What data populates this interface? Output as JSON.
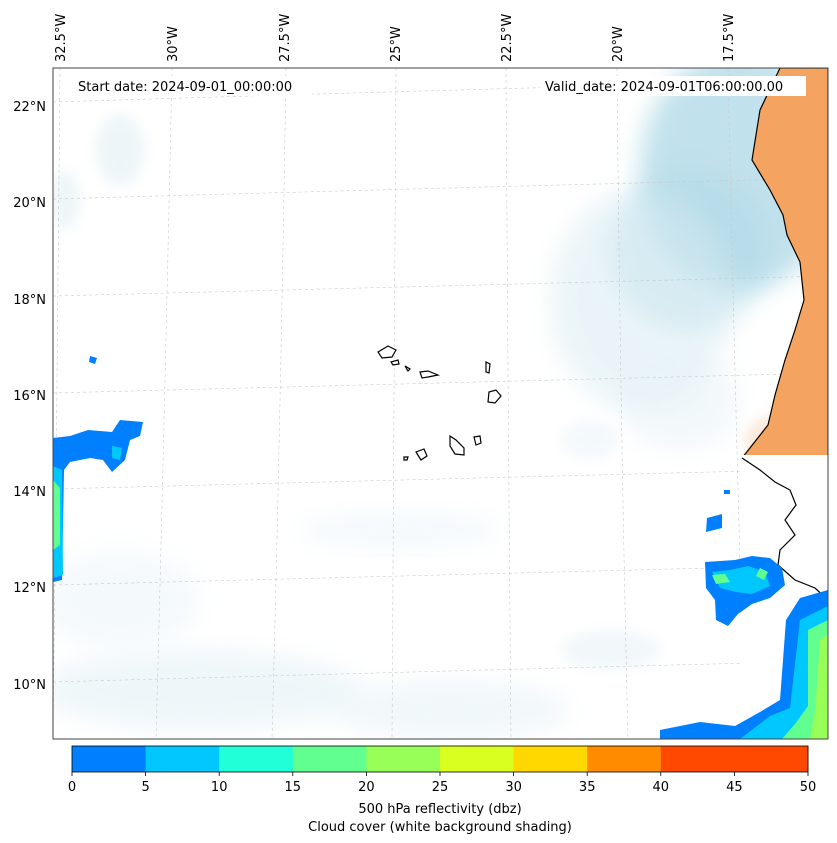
{
  "header": {
    "start_label": "Start date: 2024-09-01_00:00:00",
    "valid_label": "Valid_date: 2024-09-01T06:00:00.00"
  },
  "map": {
    "lon_labels": [
      "32.5°W",
      "30°W",
      "27.5°W",
      "25°W",
      "22.5°W",
      "20°W",
      "17.5°W"
    ],
    "lat_labels": [
      "22°N",
      "20°N",
      "18°N",
      "16°N",
      "14°N",
      "12°N",
      "10°N"
    ],
    "gridlines": true,
    "land_color": "#f4a460",
    "cloud_color": "#add8e6"
  },
  "colorbar": {
    "ticks": [
      "0",
      "5",
      "10",
      "15",
      "20",
      "25",
      "30",
      "35",
      "40",
      "45",
      "50"
    ],
    "colors": [
      "#0080ff",
      "#00c8ff",
      "#20ffd8",
      "#60ff90",
      "#98ff58",
      "#d8ff20",
      "#ffd800",
      "#ff8c00",
      "#ff4800",
      "#ff4800"
    ],
    "label_line1": "500 hPa reflectivity (dbz)",
    "label_line2": "Cloud cover (white background shading)"
  }
}
